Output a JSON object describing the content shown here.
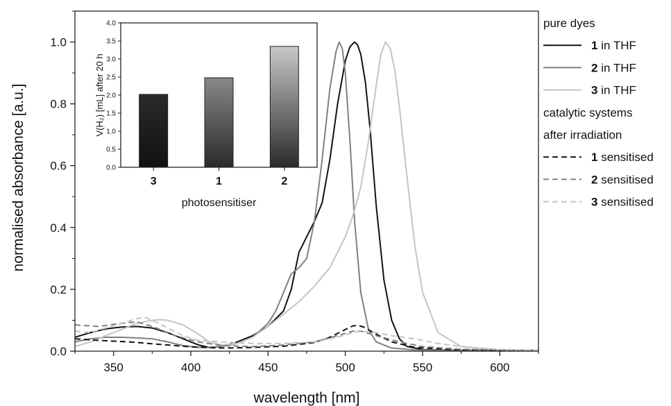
{
  "chart_data": [
    {
      "type": "line",
      "xlabel": "wavelength [nm]",
      "ylabel": "normalised absorbance [a.u.]",
      "xlim": [
        325,
        625
      ],
      "ylim": [
        0,
        1.1
      ],
      "xticks": [
        350,
        400,
        450,
        500,
        550,
        600
      ],
      "yticks": [
        0.0,
        0.2,
        0.4,
        0.6,
        0.8,
        1.0
      ],
      "xtick_labels": [
        "350",
        "400",
        "450",
        "500",
        "550",
        "600"
      ],
      "ytick_labels": [
        "0.0",
        "0.2",
        "0.4",
        "0.6",
        "0.8",
        "1.0"
      ],
      "legend": {
        "placement": "right",
        "groups": [
          {
            "header": "pure dyes",
            "entries": [
              {
                "num": "1",
                "text": " in THF",
                "series": 0
              },
              {
                "num": "2",
                "text": " in THF",
                "series": 1
              },
              {
                "num": "3",
                "text": " in THF",
                "series": 2
              }
            ]
          },
          {
            "header": "catalytic systems",
            "header2": "after irradiation",
            "entries": [
              {
                "num": "1",
                "text": " sensitised",
                "series": 3
              },
              {
                "num": "2",
                "text": " sensitised",
                "series": 4
              },
              {
                "num": "3",
                "text": " sensitised",
                "series": 5
              }
            ]
          }
        ]
      },
      "series": [
        {
          "name": "1 in THF",
          "color": "#111111",
          "dash": "solid",
          "x": [
            325,
            335,
            345,
            355,
            365,
            375,
            385,
            395,
            405,
            412,
            420,
            430,
            440,
            450,
            460,
            465,
            470,
            475,
            480,
            485,
            490,
            495,
            500,
            503,
            506,
            508,
            510,
            513,
            516,
            520,
            525,
            530,
            535,
            540,
            550,
            560,
            575,
            600,
            625
          ],
          "y": [
            0.045,
            0.06,
            0.072,
            0.078,
            0.08,
            0.075,
            0.06,
            0.04,
            0.02,
            0.012,
            0.015,
            0.03,
            0.05,
            0.08,
            0.13,
            0.2,
            0.32,
            0.37,
            0.42,
            0.48,
            0.62,
            0.8,
            0.94,
            0.985,
            1.0,
            0.99,
            0.96,
            0.87,
            0.72,
            0.47,
            0.23,
            0.1,
            0.04,
            0.015,
            0.005,
            0.004,
            0.003,
            0.003,
            0.003
          ]
        },
        {
          "name": "2 in THF",
          "color": "#7f7f7f",
          "dash": "solid",
          "x": [
            325,
            335,
            345,
            355,
            365,
            375,
            385,
            395,
            405,
            412,
            420,
            430,
            440,
            450,
            455,
            460,
            465,
            470,
            475,
            480,
            485,
            490,
            494,
            496,
            498,
            500,
            503,
            506,
            510,
            515,
            520,
            530,
            545,
            570,
            600,
            625
          ],
          "y": [
            0.03,
            0.04,
            0.045,
            0.045,
            0.043,
            0.04,
            0.03,
            0.018,
            0.012,
            0.012,
            0.015,
            0.025,
            0.045,
            0.09,
            0.13,
            0.19,
            0.25,
            0.27,
            0.3,
            0.42,
            0.62,
            0.85,
            0.97,
            1.0,
            0.98,
            0.9,
            0.68,
            0.42,
            0.19,
            0.07,
            0.03,
            0.01,
            0.004,
            0.003,
            0.003,
            0.003
          ]
        },
        {
          "name": "3 in THF",
          "color": "#c4c4c4",
          "dash": "solid",
          "x": [
            325,
            335,
            345,
            355,
            365,
            375,
            380,
            385,
            395,
            405,
            412,
            420,
            430,
            440,
            450,
            460,
            470,
            480,
            490,
            500,
            505,
            510,
            515,
            520,
            523,
            526,
            529,
            532,
            535,
            540,
            545,
            550,
            560,
            575,
            600,
            625
          ],
          "y": [
            0.015,
            0.03,
            0.05,
            0.07,
            0.09,
            0.1,
            0.102,
            0.1,
            0.085,
            0.055,
            0.03,
            0.02,
            0.025,
            0.045,
            0.08,
            0.12,
            0.16,
            0.21,
            0.27,
            0.37,
            0.44,
            0.53,
            0.68,
            0.86,
            0.96,
            1.0,
            0.98,
            0.91,
            0.79,
            0.56,
            0.34,
            0.19,
            0.06,
            0.015,
            0.004,
            0.003
          ]
        },
        {
          "name": "1 sensitised",
          "color": "#111111",
          "dash": "dashed",
          "x": [
            325,
            340,
            360,
            380,
            400,
            420,
            440,
            460,
            480,
            490,
            500,
            505,
            508,
            512,
            520,
            530,
            545,
            570,
            600,
            625
          ],
          "y": [
            0.04,
            0.035,
            0.03,
            0.022,
            0.014,
            0.01,
            0.012,
            0.016,
            0.028,
            0.045,
            0.07,
            0.082,
            0.083,
            0.078,
            0.055,
            0.03,
            0.012,
            0.005,
            0.003,
            0.003
          ]
        },
        {
          "name": "2 sensitised",
          "color": "#7f7f7f",
          "dash": "dashed",
          "x": [
            325,
            340,
            355,
            365,
            375,
            390,
            405,
            420,
            440,
            460,
            480,
            495,
            505,
            510,
            520,
            535,
            550,
            575,
            600,
            625
          ],
          "y": [
            0.085,
            0.08,
            0.09,
            0.095,
            0.08,
            0.05,
            0.03,
            0.018,
            0.015,
            0.02,
            0.03,
            0.05,
            0.065,
            0.065,
            0.05,
            0.03,
            0.015,
            0.006,
            0.004,
            0.003
          ]
        },
        {
          "name": "3 sensitised",
          "color": "#c4c4c4",
          "dash": "dashed",
          "x": [
            325,
            335,
            345,
            355,
            365,
            370,
            375,
            385,
            395,
            405,
            420,
            440,
            460,
            480,
            495,
            505,
            510,
            520,
            530,
            545,
            560,
            580,
            600,
            625
          ],
          "y": [
            0.065,
            0.06,
            0.075,
            0.09,
            0.105,
            0.11,
            0.1,
            0.075,
            0.05,
            0.035,
            0.03,
            0.025,
            0.025,
            0.03,
            0.045,
            0.06,
            0.065,
            0.06,
            0.05,
            0.04,
            0.025,
            0.012,
            0.006,
            0.003
          ]
        }
      ]
    },
    {
      "type": "bar",
      "inset": true,
      "xlabel": "photosensitiser",
      "ylabel": "V(H₂) [mL] after 20 h",
      "ylim": [
        0,
        4.0
      ],
      "yticks": [
        0.0,
        0.5,
        1.0,
        1.5,
        2.0,
        2.5,
        3.0,
        3.5,
        4.0
      ],
      "ytick_labels": [
        "0.0",
        "0.5",
        "1.0",
        "1.5",
        "2.0",
        "2.5",
        "3.0",
        "3.5",
        "4.0"
      ],
      "categories": [
        "3",
        "1",
        "2"
      ],
      "values": [
        2.02,
        2.48,
        3.35
      ],
      "bar_gradients": [
        [
          "#2a2a2a",
          "#111111"
        ],
        [
          "#888888",
          "#2a2a2a"
        ],
        [
          "#c8c8c8",
          "#2a2a2a"
        ]
      ]
    }
  ]
}
